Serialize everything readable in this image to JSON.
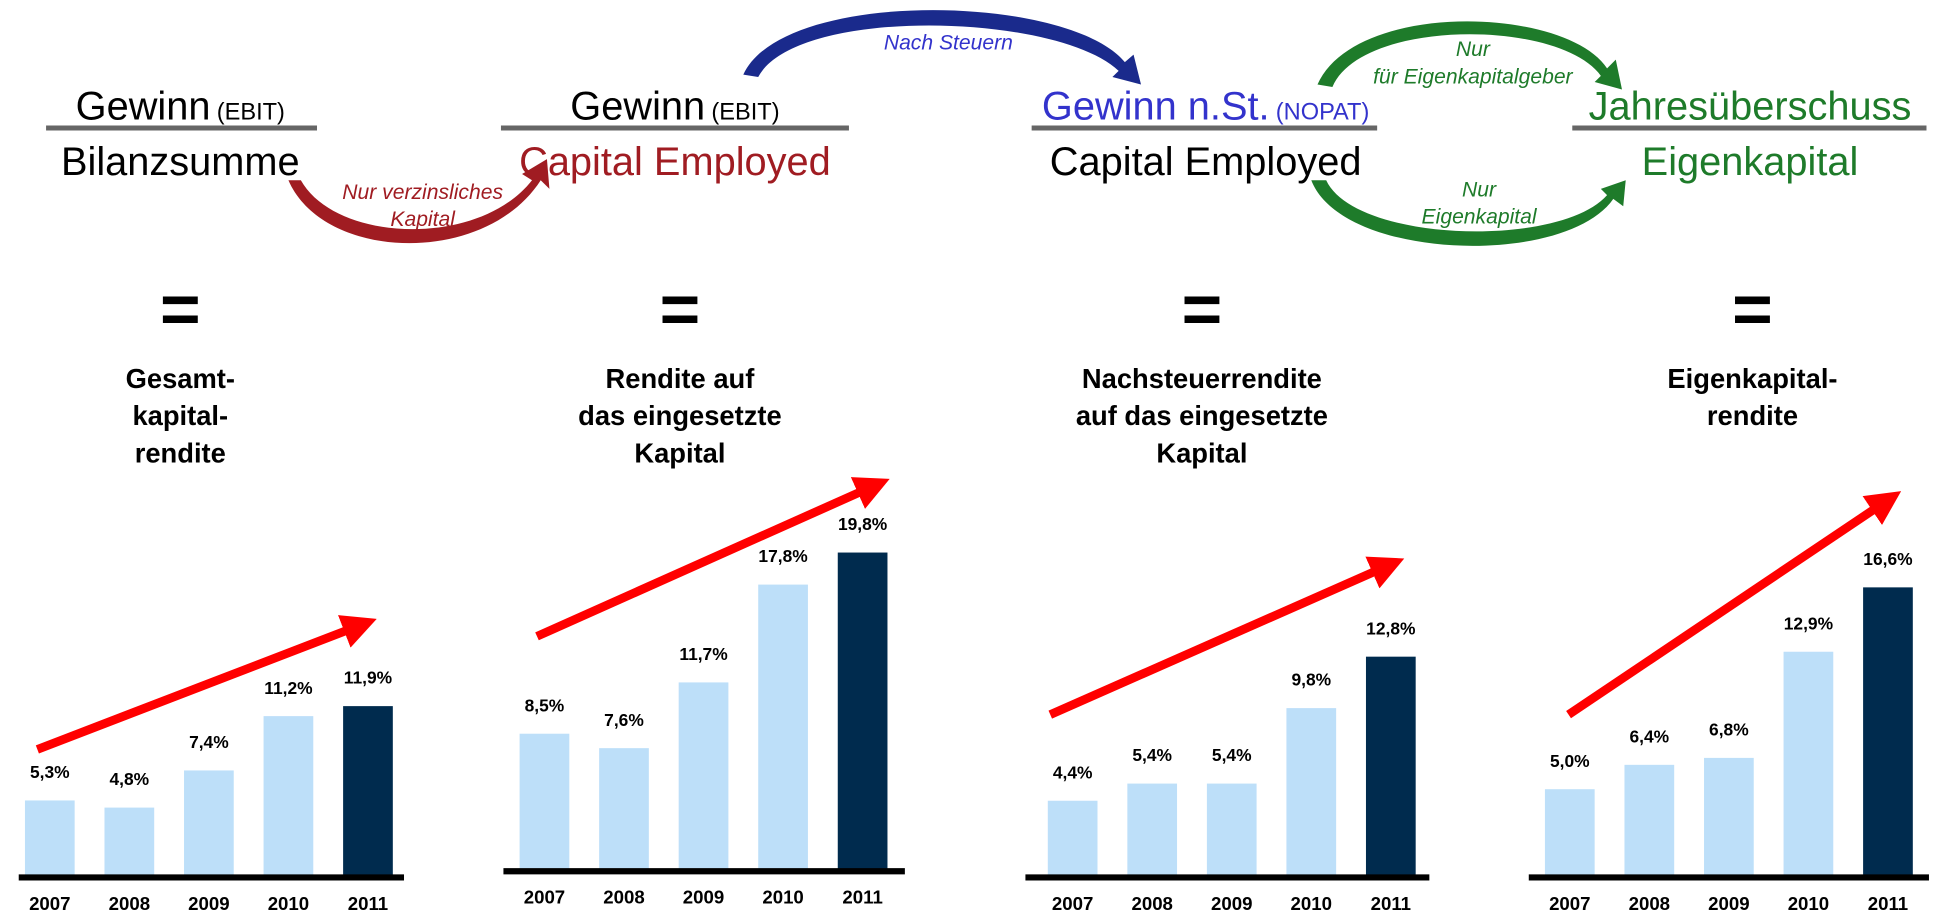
{
  "formulas": [
    {
      "numerator": "Gewinn",
      "suffix": "(EBIT)",
      "denominator": "Bilanzsumme",
      "num_color": "#000000",
      "den_color": "#000000"
    },
    {
      "numerator": "Gewinn",
      "suffix": "(EBIT)",
      "denominator": "Capital Employed",
      "num_color": "#000000",
      "den_color": "#a01c22"
    },
    {
      "numerator": "Gewinn n.St.",
      "suffix": "(NOPAT)",
      "denominator": "Capital Employed",
      "num_color": "#3333cc",
      "den_color": "#000000"
    },
    {
      "numerator": "Jahresüberschuss",
      "denominator": "Eigenkapital",
      "num_color": "#1e7b2a",
      "den_color": "#1e7b2a"
    }
  ],
  "annotations": [
    {
      "lines": [
        "Nur verzinsliches",
        "Kapital"
      ],
      "color": "#a01c22"
    },
    {
      "lines": [
        "Nach Steuern"
      ],
      "color": "#3333cc"
    },
    {
      "lines": [
        "Nur",
        "für Eigenkapitalgeber"
      ],
      "color": "#1e7b2a"
    },
    {
      "lines": [
        "Nur",
        "Eigenkapital"
      ],
      "color": "#1e7b2a"
    }
  ],
  "equals": [
    "=",
    "=",
    "=",
    "="
  ],
  "chart_data": [
    {
      "type": "bar",
      "title": [
        "Gesamt-",
        "kapital-",
        "rendite"
      ],
      "categories": [
        "2007",
        "2008",
        "2009",
        "2010",
        "2011"
      ],
      "values": [
        5.3,
        4.8,
        7.4,
        11.2,
        11.9
      ],
      "value_labels": [
        "5,3%",
        "4,8%",
        "7,4%",
        "11,2%",
        "11,9%"
      ],
      "colors": [
        "#bddff9",
        "#bddff9",
        "#bddff9",
        "#bddff9",
        "#002b4e"
      ]
    },
    {
      "type": "bar",
      "title": [
        "Rendite auf",
        "das eingesetzte",
        "Kapital"
      ],
      "categories": [
        "2007",
        "2008",
        "2009",
        "2010",
        "2011"
      ],
      "values": [
        8.5,
        7.6,
        11.7,
        17.8,
        19.8
      ],
      "value_labels": [
        "8,5%",
        "7,6%",
        "11,7%",
        "17,8%",
        "19,8%"
      ],
      "colors": [
        "#bddff9",
        "#bddff9",
        "#bddff9",
        "#bddff9",
        "#002b4e"
      ]
    },
    {
      "type": "bar",
      "title": [
        "Nachsteuerrendite",
        "auf das eingesetzte",
        "Kapital"
      ],
      "categories": [
        "2007",
        "2008",
        "2009",
        "2010",
        "2011"
      ],
      "values": [
        4.4,
        5.4,
        5.4,
        9.8,
        12.8
      ],
      "value_labels": [
        "4,4%",
        "5,4%",
        "5,4%",
        "9,8%",
        "12,8%"
      ],
      "colors": [
        "#bddff9",
        "#bddff9",
        "#bddff9",
        "#bddff9",
        "#002b4e"
      ]
    },
    {
      "type": "bar",
      "title": [
        "Eigenkapital-",
        "rendite"
      ],
      "categories": [
        "2007",
        "2008",
        "2009",
        "2010",
        "2011"
      ],
      "values": [
        5.0,
        6.4,
        6.8,
        12.9,
        16.6
      ],
      "value_labels": [
        "5,0%",
        "6,4%",
        "6,8%",
        "12,9%",
        "16,6%"
      ],
      "colors": [
        "#bddff9",
        "#bddff9",
        "#bddff9",
        "#bddff9",
        "#002b4e"
      ]
    }
  ]
}
